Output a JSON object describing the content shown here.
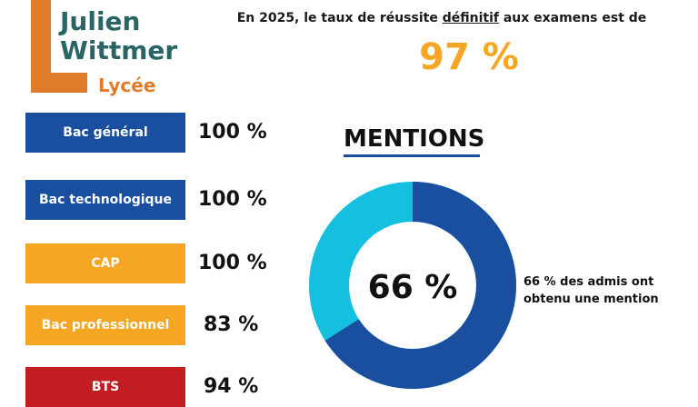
{
  "logo": {
    "line1": "Julien",
    "line2": "Wittmer",
    "sub": "Lycée"
  },
  "headline": {
    "before": "En 2025, le taux de réussite ",
    "underlined": "définitif",
    "after": " aux examens est de",
    "rate": "97 %"
  },
  "exams": [
    {
      "label": "Bac général",
      "value": "100 %",
      "color": "#1a4fa0"
    },
    {
      "label": "Bac technologique",
      "value": "100 %",
      "color": "#1a4fa0"
    },
    {
      "label": "CAP",
      "value": "100 %",
      "color": "#f5a623"
    },
    {
      "label": "Bac professionnel",
      "value": "83 %",
      "color": "#f5a623"
    },
    {
      "label": "BTS",
      "value": "94 %",
      "color": "#c41e24"
    }
  ],
  "mentions": {
    "title": "MENTIONS",
    "percent_text": "66 %",
    "percent_value": 66,
    "note": "66 % des admis ont obtenu une mention",
    "colors": {
      "filled": "#1a4fa0",
      "rest": "#14bfe0"
    }
  }
}
